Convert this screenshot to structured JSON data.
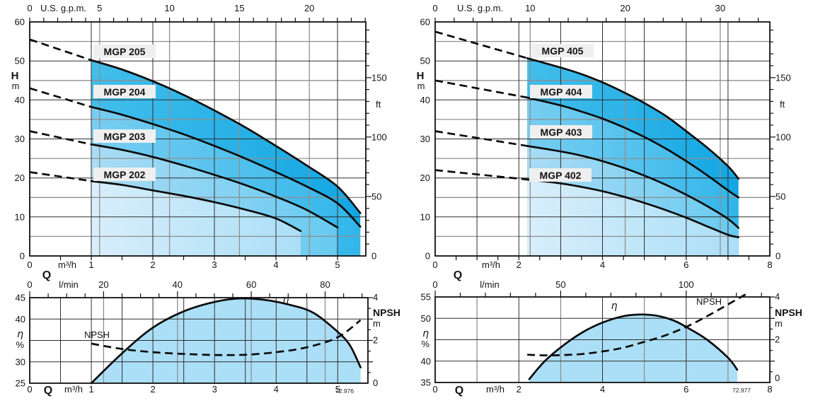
{
  "page": {
    "background": "#ffffff"
  },
  "colors": {
    "fill_bands": [
      [
        "#42beeb",
        "#13a6e3"
      ],
      [
        "#79cef1",
        "#31b6ea"
      ],
      [
        "#aadcf5",
        "#68caf0"
      ],
      [
        "#d8eefb",
        "#abdff7"
      ]
    ],
    "eta_fill": "#abdff7",
    "curve": "#0b0b0b",
    "grid_dark": "#2e2e2e",
    "grid_gray": "#8f8f8f",
    "label_box": "#efefef"
  },
  "chart_data": [
    {
      "id": "head-mgp-200",
      "type": "line",
      "pump_family": "MGP 2..",
      "axes": {
        "top": {
          "title": "U.S. g.p.m.",
          "labels": [
            "0",
            "5",
            "10",
            "15",
            "20"
          ]
        },
        "left": {
          "symbol": "H",
          "unit": "m",
          "labels": [
            "60",
            "50",
            "40",
            "30",
            "20",
            "10",
            "0"
          ]
        },
        "right": {
          "unit": "ft",
          "labels": [
            "150",
            "100",
            "50",
            "0"
          ]
        },
        "bottom": {
          "flow_symbol": "Q",
          "unit": "m³/h",
          "zero": "0",
          "labels": [
            "1",
            "2",
            "3",
            "4",
            "5"
          ]
        }
      },
      "series": [
        {
          "name": "MGP 205",
          "dashed": [
            [
              0,
              55.5
            ],
            [
              1,
              50.2
            ]
          ],
          "solid": [
            [
              1,
              50.2
            ],
            [
              1.5,
              47.8
            ],
            [
              2,
              44.8
            ],
            [
              2.5,
              41.3
            ],
            [
              3,
              37.3
            ],
            [
              3.5,
              33
            ],
            [
              4,
              28.2
            ],
            [
              4.5,
              23.2
            ],
            [
              5,
              17.8
            ],
            [
              5.37,
              11
            ]
          ]
        },
        {
          "name": "MGP 204",
          "dashed": [
            [
              0,
              43
            ],
            [
              1,
              38.2
            ]
          ],
          "solid": [
            [
              1,
              38.2
            ],
            [
              1.5,
              36.2
            ],
            [
              2,
              33.8
            ],
            [
              2.5,
              31.2
            ],
            [
              3,
              28.2
            ],
            [
              3.5,
              25
            ],
            [
              4,
              21.5
            ],
            [
              4.5,
              17.8
            ],
            [
              5,
              13.5
            ],
            [
              5.37,
              7.5
            ]
          ]
        },
        {
          "name": "MGP 203",
          "dashed": [
            [
              0,
              32
            ],
            [
              1,
              28.6
            ]
          ],
          "solid": [
            [
              1,
              28.6
            ],
            [
              1.5,
              27.2
            ],
            [
              2,
              25.4
            ],
            [
              2.5,
              23.2
            ],
            [
              3,
              20.8
            ],
            [
              3.5,
              18.2
            ],
            [
              4,
              15.2
            ],
            [
              4.5,
              11.8
            ],
            [
              5,
              7.3
            ]
          ]
        },
        {
          "name": "MGP 202",
          "dashed": [
            [
              0,
              21.5
            ],
            [
              1,
              19.2
            ]
          ],
          "solid": [
            [
              1,
              19.2
            ],
            [
              1.5,
              18.2
            ],
            [
              2,
              16.8
            ],
            [
              2.5,
              15.4
            ],
            [
              3,
              13.8
            ],
            [
              3.5,
              11.9
            ],
            [
              4,
              9.6
            ],
            [
              4.4,
              6.4
            ]
          ]
        }
      ]
    },
    {
      "id": "head-mgp-400",
      "type": "line",
      "pump_family": "MGP 4..",
      "axes": {
        "top": {
          "title": "U.S. g.p.m.",
          "labels": [
            "0",
            "10",
            "20",
            "30"
          ]
        },
        "left": {
          "symbol": "H",
          "unit": "m",
          "labels": [
            "60",
            "50",
            "40",
            "30",
            "20",
            "10",
            "0"
          ]
        },
        "right": {
          "unit": "ft",
          "labels": [
            "150",
            "100",
            "50",
            "0"
          ]
        },
        "bottom": {
          "flow_symbol": "Q",
          "unit": "m³/h",
          "zero": "0",
          "labels": [
            "2",
            "4",
            "6",
            "8"
          ]
        }
      },
      "series": [
        {
          "name": "MGP 405",
          "dashed": [
            [
              0,
              57.5
            ],
            [
              2.2,
              50.7
            ]
          ],
          "solid": [
            [
              2.2,
              50.7
            ],
            [
              3,
              48.3
            ],
            [
              3.5,
              46.6
            ],
            [
              4,
              44.5
            ],
            [
              4.5,
              42
            ],
            [
              5,
              39.2
            ],
            [
              5.5,
              36
            ],
            [
              6,
              32
            ],
            [
              6.5,
              27.8
            ],
            [
              7,
              23
            ],
            [
              7.25,
              19.8
            ]
          ]
        },
        {
          "name": "MGP 404",
          "dashed": [
            [
              0,
              45
            ],
            [
              2.2,
              40.6
            ]
          ],
          "solid": [
            [
              2.2,
              40.6
            ],
            [
              3,
              38.6
            ],
            [
              3.5,
              37
            ],
            [
              4,
              35.2
            ],
            [
              4.5,
              33
            ],
            [
              5,
              30.5
            ],
            [
              5.5,
              27.6
            ],
            [
              6,
              24.3
            ],
            [
              6.5,
              20.7
            ],
            [
              7,
              16.8
            ],
            [
              7.25,
              15
            ]
          ]
        },
        {
          "name": "MGP 403",
          "dashed": [
            [
              0,
              32
            ],
            [
              2.2,
              28.2
            ]
          ],
          "solid": [
            [
              2.2,
              28.2
            ],
            [
              3,
              26.8
            ],
            [
              3.5,
              25.7
            ],
            [
              4,
              24.3
            ],
            [
              4.5,
              22.6
            ],
            [
              5,
              20.6
            ],
            [
              5.5,
              18.3
            ],
            [
              6,
              15.7
            ],
            [
              6.5,
              12.8
            ],
            [
              7,
              9.5
            ],
            [
              7.25,
              7.2
            ]
          ]
        },
        {
          "name": "MGP 402",
          "dashed": [
            [
              0,
              22
            ],
            [
              2.2,
              19.6
            ]
          ],
          "solid": [
            [
              2.2,
              19.6
            ],
            [
              3,
              18.6
            ],
            [
              3.5,
              17.7
            ],
            [
              4,
              16.6
            ],
            [
              4.5,
              15.2
            ],
            [
              5,
              13.6
            ],
            [
              5.5,
              11.8
            ],
            [
              6,
              9.8
            ],
            [
              6.5,
              7.6
            ],
            [
              7,
              5.4
            ],
            [
              7.25,
              4.8
            ]
          ]
        }
      ]
    },
    {
      "id": "eta-npsh-mgp-200",
      "type": "line",
      "axes": {
        "top": {
          "unit": "l/min",
          "zero": "0",
          "labels": [
            "20",
            "40",
            "60",
            "80"
          ]
        },
        "left": {
          "symbol": "η",
          "unit": "%",
          "labels": [
            "45",
            "40",
            "30",
            "25"
          ]
        },
        "right": {
          "title": "NPSH",
          "unit": "m",
          "labels": [
            "4",
            "2",
            "0"
          ]
        },
        "bottom": {
          "flow_symbol": "Q",
          "unit": "m³/h",
          "labels": [
            "0",
            "1",
            "2",
            "3",
            "4",
            "5"
          ]
        }
      },
      "curve_labels": {
        "eta": "η",
        "npsh": "NPSH"
      },
      "figure_number": "72.976",
      "series": [
        {
          "name": "η",
          "scale": "eta",
          "style": "solid",
          "points": [
            [
              1,
              25
            ],
            [
              1.5,
              32
            ],
            [
              2,
              38
            ],
            [
              2.5,
              41.8
            ],
            [
              3,
              44
            ],
            [
              3.4,
              44.8
            ],
            [
              3.8,
              44.5
            ],
            [
              4.2,
              43.4
            ],
            [
              4.6,
              41.5
            ],
            [
              5,
              37
            ],
            [
              5.2,
              33.8
            ],
            [
              5.37,
              28.7
            ]
          ]
        },
        {
          "name": "NPSH",
          "scale": "npsh",
          "style": "dashed",
          "points": [
            [
              1,
              1.85
            ],
            [
              1.5,
              1.6
            ],
            [
              2,
              1.45
            ],
            [
              2.5,
              1.37
            ],
            [
              3,
              1.32
            ],
            [
              3.5,
              1.33
            ],
            [
              4,
              1.45
            ],
            [
              4.5,
              1.68
            ],
            [
              5,
              2.15
            ],
            [
              5.37,
              2.95
            ]
          ]
        }
      ]
    },
    {
      "id": "eta-npsh-mgp-400",
      "type": "line",
      "axes": {
        "top": {
          "unit": "l/min",
          "zero": "0",
          "labels": [
            "50",
            "100"
          ]
        },
        "left": {
          "symbol": "η",
          "unit": "%",
          "labels": [
            "55",
            "50",
            "40",
            "35"
          ]
        },
        "right": {
          "title": "NPSH",
          "unit": "m",
          "labels": [
            "4",
            "2",
            "0"
          ]
        },
        "bottom": {
          "flow_symbol": "Q",
          "unit": "m³/h",
          "labels": [
            "0",
            "2",
            "4",
            "6",
            "8"
          ]
        }
      },
      "curve_labels": {
        "eta": "η",
        "npsh": "NPSH"
      },
      "figure_number": "72.977",
      "series": [
        {
          "name": "η",
          "scale": "eta",
          "style": "solid",
          "points": [
            [
              2.25,
              35.8
            ],
            [
              2.6,
              39.8
            ],
            [
              3,
              43.2
            ],
            [
              3.5,
              46.6
            ],
            [
              4,
              49
            ],
            [
              4.5,
              50.5
            ],
            [
              4.9,
              50.9
            ],
            [
              5.3,
              50.6
            ],
            [
              5.7,
              49.5
            ],
            [
              6,
              48
            ],
            [
              6.5,
              45
            ],
            [
              7,
              40.8
            ],
            [
              7.22,
              38
            ]
          ]
        },
        {
          "name": "NPSH",
          "scale": "npsh",
          "style": "dashed",
          "points": [
            [
              2.2,
              1.3
            ],
            [
              2.6,
              1.27
            ],
            [
              3,
              1.28
            ],
            [
              3.5,
              1.33
            ],
            [
              4,
              1.45
            ],
            [
              4.5,
              1.63
            ],
            [
              5,
              1.9
            ],
            [
              5.5,
              2.2
            ],
            [
              6,
              2.6
            ],
            [
              6.5,
              3.1
            ],
            [
              7,
              3.65
            ],
            [
              7.42,
              4.12
            ]
          ]
        }
      ]
    }
  ]
}
